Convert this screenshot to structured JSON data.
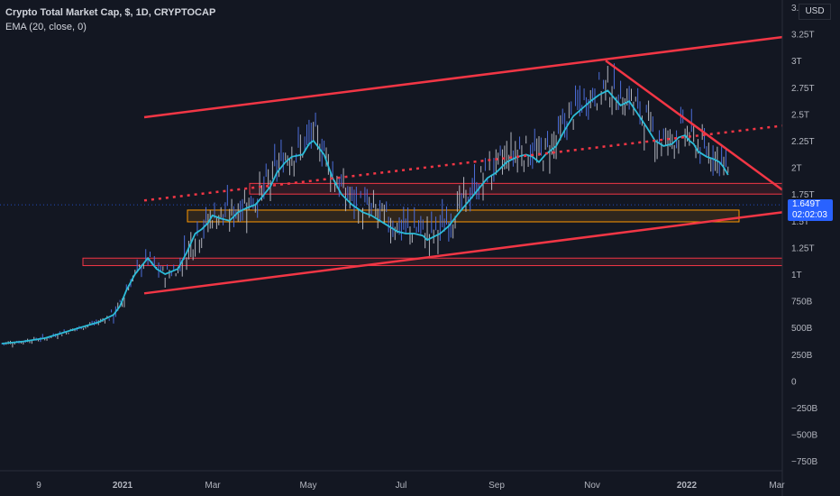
{
  "header": {
    "title": "Crypto Total Market Cap, $, 1D, CRYPTOCAP",
    "indicator": "EMA (20, close, 0)",
    "currency": "USD"
  },
  "price_label": {
    "value": "1.649T",
    "countdown": "02:02:03"
  },
  "colors": {
    "background": "#131722",
    "ema": "#2cbcd8",
    "trendline": "#f23645",
    "zone_red": "#f23645",
    "zone_orange": "#ff9800",
    "candle_up": "#4c6edb",
    "candle_down": "#b2b5be",
    "price_badge": "#2962ff"
  },
  "chart_data": {
    "type": "line",
    "y_ticks": [
      "3.5T",
      "3.25T",
      "3T",
      "2.75T",
      "2.5T",
      "2.25T",
      "2T",
      "1.75T",
      "1.5T",
      "1.25T",
      "1T",
      "750B",
      "500B",
      "250B",
      "0",
      "−250B",
      "−500B",
      "−750B"
    ],
    "x_ticks": [
      "9",
      "2021",
      "Mar",
      "May",
      "Jul",
      "Sep",
      "Nov",
      "2022",
      "Mar"
    ],
    "series": [
      {
        "values": [
          [
            0,
            0.35
          ],
          [
            10,
            0.37
          ],
          [
            20,
            0.4
          ],
          [
            30,
            0.46
          ],
          [
            40,
            0.52
          ],
          [
            45,
            0.55
          ],
          [
            52,
            0.62
          ],
          [
            55,
            0.7
          ],
          [
            58,
            0.85
          ],
          [
            62,
            1.0
          ],
          [
            66,
            1.1
          ],
          [
            68,
            1.15
          ],
          [
            72,
            1.05
          ],
          [
            76,
            1.0
          ],
          [
            82,
            1.05
          ],
          [
            86,
            1.2
          ],
          [
            90,
            1.38
          ],
          [
            93,
            1.42
          ],
          [
            96,
            1.48
          ],
          [
            98,
            1.55
          ],
          [
            102,
            1.52
          ],
          [
            106,
            1.5
          ],
          [
            110,
            1.58
          ],
          [
            114,
            1.62
          ],
          [
            118,
            1.65
          ],
          [
            121,
            1.72
          ],
          [
            125,
            1.82
          ],
          [
            128,
            1.95
          ],
          [
            132,
            2.05
          ],
          [
            135,
            2.1
          ],
          [
            140,
            2.12
          ],
          [
            143,
            2.22
          ],
          [
            145,
            2.25
          ],
          [
            150,
            2.12
          ],
          [
            154,
            1.9
          ],
          [
            158,
            1.75
          ],
          [
            163,
            1.65
          ],
          [
            168,
            1.58
          ],
          [
            172,
            1.55
          ],
          [
            176,
            1.5
          ],
          [
            180,
            1.45
          ],
          [
            184,
            1.4
          ],
          [
            188,
            1.38
          ],
          [
            192,
            1.38
          ],
          [
            196,
            1.36
          ],
          [
            198,
            1.32
          ],
          [
            204,
            1.38
          ],
          [
            208,
            1.45
          ],
          [
            213,
            1.58
          ],
          [
            218,
            1.7
          ],
          [
            222,
            1.8
          ],
          [
            226,
            1.9
          ],
          [
            230,
            1.95
          ],
          [
            235,
            2.05
          ],
          [
            240,
            2.1
          ],
          [
            244,
            2.12
          ],
          [
            247,
            2.1
          ],
          [
            250,
            2.05
          ],
          [
            253,
            2.12
          ],
          [
            258,
            2.2
          ],
          [
            262,
            2.35
          ],
          [
            266,
            2.48
          ],
          [
            270,
            2.55
          ],
          [
            274,
            2.62
          ],
          [
            278,
            2.68
          ],
          [
            282,
            2.72
          ],
          [
            285,
            2.65
          ],
          [
            288,
            2.58
          ],
          [
            292,
            2.62
          ],
          [
            296,
            2.5
          ],
          [
            300,
            2.38
          ],
          [
            304,
            2.25
          ],
          [
            308,
            2.2
          ],
          [
            312,
            2.22
          ],
          [
            315,
            2.28
          ],
          [
            318,
            2.3
          ],
          [
            320,
            2.25
          ],
          [
            322,
            2.22
          ],
          [
            324,
            2.15
          ],
          [
            328,
            2.1
          ],
          [
            331,
            2.08
          ],
          [
            334,
            2.05
          ],
          [
            336,
            2.0
          ],
          [
            338,
            1.93
          ]
        ],
        "unit": "T"
      }
    ],
    "ylim": [
      -0.85,
      3.55
    ],
    "grid": false
  }
}
